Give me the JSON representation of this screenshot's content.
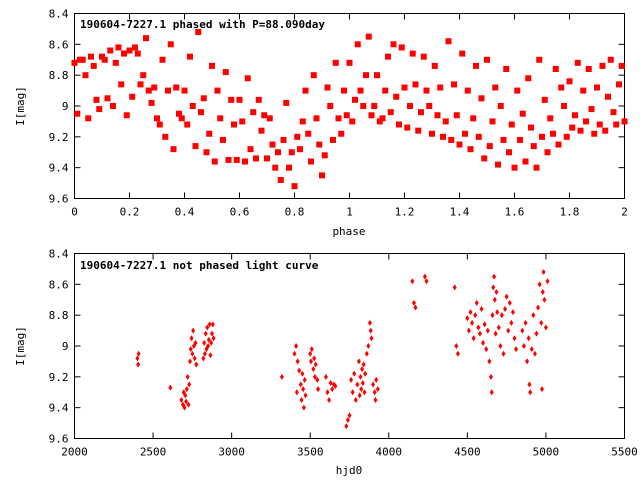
{
  "chart_data": [
    {
      "type": "scatter",
      "title": "190604-7227.1 phased with P=88.090day",
      "xlabel": "phase",
      "ylabel": "I[mag]",
      "xlim": [
        0,
        2
      ],
      "ylim": [
        8.4,
        9.6
      ],
      "y_inverted": true,
      "grid": false,
      "marker": "filled square",
      "color": "#ff0000",
      "x_ticks": [
        "0",
        "0.2",
        "0.4",
        "0.6",
        "0.8",
        "1",
        "1.2",
        "1.4",
        "1.6",
        "1.8",
        "2"
      ],
      "y_ticks": [
        "8.4",
        "8.6",
        "8.8",
        "9",
        "9.2",
        "9.4",
        "9.6"
      ],
      "points": [
        [
          0.0,
          8.72
        ],
        [
          0.01,
          9.05
        ],
        [
          0.02,
          8.7
        ],
        [
          0.03,
          8.7
        ],
        [
          0.04,
          8.8
        ],
        [
          0.05,
          9.08
        ],
        [
          0.06,
          8.68
        ],
        [
          0.07,
          8.74
        ],
        [
          0.08,
          8.96
        ],
        [
          0.09,
          9.02
        ],
        [
          0.1,
          8.68
        ],
        [
          0.11,
          8.7
        ],
        [
          0.12,
          8.95
        ],
        [
          0.13,
          8.64
        ],
        [
          0.14,
          9.0
        ],
        [
          0.15,
          8.72
        ],
        [
          0.16,
          8.62
        ],
        [
          0.17,
          8.86
        ],
        [
          0.18,
          8.66
        ],
        [
          0.19,
          9.06
        ],
        [
          0.2,
          8.64
        ],
        [
          0.21,
          8.94
        ],
        [
          0.22,
          8.62
        ],
        [
          0.23,
          8.66
        ],
        [
          0.24,
          8.86
        ],
        [
          0.25,
          8.8
        ],
        [
          0.26,
          8.56
        ],
        [
          0.27,
          8.9
        ],
        [
          0.28,
          8.98
        ],
        [
          0.29,
          8.88
        ],
        [
          0.3,
          9.08
        ],
        [
          0.31,
          9.12
        ],
        [
          0.32,
          8.7
        ],
        [
          0.33,
          9.2
        ],
        [
          0.34,
          8.9
        ],
        [
          0.35,
          8.6
        ],
        [
          0.36,
          9.28
        ],
        [
          0.37,
          8.88
        ],
        [
          0.38,
          9.05
        ],
        [
          0.39,
          9.08
        ],
        [
          0.4,
          8.9
        ],
        [
          0.41,
          9.12
        ],
        [
          0.42,
          8.68
        ],
        [
          0.43,
          9.0
        ],
        [
          0.44,
          9.26
        ],
        [
          0.45,
          8.52
        ],
        [
          0.46,
          9.04
        ],
        [
          0.47,
          8.95
        ],
        [
          0.48,
          9.3
        ],
        [
          0.49,
          9.18
        ],
        [
          0.5,
          8.74
        ],
        [
          0.51,
          9.36
        ],
        [
          0.52,
          8.9
        ],
        [
          0.53,
          9.08
        ],
        [
          0.54,
          9.22
        ],
        [
          0.55,
          8.78
        ],
        [
          0.56,
          9.35
        ],
        [
          0.57,
          8.96
        ],
        [
          0.58,
          9.12
        ],
        [
          0.59,
          9.35
        ],
        [
          0.6,
          8.96
        ],
        [
          0.61,
          9.1
        ],
        [
          0.62,
          9.36
        ],
        [
          0.63,
          8.82
        ],
        [
          0.64,
          9.28
        ],
        [
          0.65,
          9.04
        ],
        [
          0.66,
          9.34
        ],
        [
          0.67,
          8.96
        ],
        [
          0.68,
          9.16
        ],
        [
          0.69,
          9.06
        ],
        [
          0.7,
          9.34
        ],
        [
          0.71,
          9.08
        ],
        [
          0.72,
          9.25
        ],
        [
          0.73,
          9.4
        ],
        [
          0.74,
          9.3
        ],
        [
          0.75,
          9.48
        ],
        [
          0.76,
          9.22
        ],
        [
          0.77,
          8.98
        ],
        [
          0.78,
          9.4
        ],
        [
          0.79,
          9.3
        ],
        [
          0.8,
          9.52
        ],
        [
          0.81,
          9.2
        ],
        [
          0.82,
          9.28
        ],
        [
          0.83,
          9.1
        ],
        [
          0.84,
          8.9
        ],
        [
          0.85,
          9.18
        ],
        [
          0.86,
          9.36
        ],
        [
          0.87,
          8.8
        ],
        [
          0.88,
          9.08
        ],
        [
          0.89,
          9.25
        ],
        [
          0.9,
          9.45
        ],
        [
          0.91,
          9.32
        ],
        [
          0.92,
          8.88
        ],
        [
          0.93,
          9.0
        ],
        [
          0.94,
          9.22
        ],
        [
          0.95,
          8.72
        ],
        [
          0.96,
          9.08
        ],
        [
          0.97,
          9.18
        ],
        [
          0.98,
          8.9
        ],
        [
          0.99,
          9.06
        ],
        [
          1.0,
          8.72
        ],
        [
          1.01,
          9.1
        ],
        [
          1.02,
          8.96
        ],
        [
          1.03,
          8.6
        ],
        [
          1.04,
          8.9
        ],
        [
          1.05,
          9.0
        ],
        [
          1.06,
          8.8
        ],
        [
          1.07,
          8.55
        ],
        [
          1.08,
          9.06
        ],
        [
          1.09,
          9.0
        ],
        [
          1.1,
          8.8
        ],
        [
          1.11,
          9.1
        ],
        [
          1.12,
          9.08
        ],
        [
          1.13,
          8.9
        ],
        [
          1.14,
          8.68
        ],
        [
          1.15,
          9.04
        ],
        [
          1.16,
          8.6
        ],
        [
          1.17,
          8.94
        ],
        [
          1.18,
          9.12
        ],
        [
          1.19,
          8.62
        ],
        [
          1.2,
          8.88
        ],
        [
          1.21,
          9.14
        ],
        [
          1.22,
          9.0
        ],
        [
          1.23,
          8.66
        ],
        [
          1.24,
          8.86
        ],
        [
          1.25,
          9.16
        ],
        [
          1.26,
          9.04
        ],
        [
          1.27,
          8.68
        ],
        [
          1.28,
          8.9
        ],
        [
          1.29,
          9.0
        ],
        [
          1.3,
          9.18
        ],
        [
          1.31,
          8.74
        ],
        [
          1.32,
          9.06
        ],
        [
          1.33,
          8.88
        ],
        [
          1.34,
          9.2
        ],
        [
          1.35,
          9.1
        ],
        [
          1.36,
          8.58
        ],
        [
          1.37,
          9.22
        ],
        [
          1.38,
          8.86
        ],
        [
          1.39,
          9.06
        ],
        [
          1.4,
          9.25
        ],
        [
          1.41,
          8.66
        ],
        [
          1.42,
          9.18
        ],
        [
          1.43,
          8.9
        ],
        [
          1.44,
          9.28
        ],
        [
          1.45,
          9.08
        ],
        [
          1.46,
          8.74
        ],
        [
          1.47,
          9.2
        ],
        [
          1.48,
          8.95
        ],
        [
          1.49,
          9.34
        ],
        [
          1.5,
          8.7
        ],
        [
          1.51,
          9.26
        ],
        [
          1.52,
          9.1
        ],
        [
          1.53,
          8.88
        ],
        [
          1.54,
          9.38
        ],
        [
          1.55,
          9.0
        ],
        [
          1.56,
          9.22
        ],
        [
          1.57,
          8.76
        ],
        [
          1.58,
          9.3
        ],
        [
          1.59,
          9.12
        ],
        [
          1.6,
          9.4
        ],
        [
          1.61,
          8.9
        ],
        [
          1.62,
          9.22
        ],
        [
          1.63,
          9.05
        ],
        [
          1.64,
          9.36
        ],
        [
          1.65,
          8.82
        ],
        [
          1.66,
          9.14
        ],
        [
          1.67,
          9.26
        ],
        [
          1.68,
          9.4
        ],
        [
          1.69,
          8.7
        ],
        [
          1.7,
          9.2
        ],
        [
          1.71,
          8.96
        ],
        [
          1.72,
          9.3
        ],
        [
          1.73,
          9.08
        ],
        [
          1.74,
          9.18
        ],
        [
          1.75,
          8.76
        ],
        [
          1.76,
          9.25
        ],
        [
          1.77,
          8.88
        ],
        [
          1.78,
          9.0
        ],
        [
          1.79,
          9.2
        ],
        [
          1.8,
          8.84
        ],
        [
          1.81,
          9.14
        ],
        [
          1.82,
          9.06
        ],
        [
          1.83,
          8.72
        ],
        [
          1.84,
          9.16
        ],
        [
          1.85,
          8.9
        ],
        [
          1.86,
          9.1
        ],
        [
          1.87,
          8.76
        ],
        [
          1.88,
          9.02
        ],
        [
          1.89,
          9.18
        ],
        [
          1.9,
          8.88
        ],
        [
          1.91,
          9.12
        ],
        [
          1.92,
          8.74
        ],
        [
          1.93,
          9.16
        ],
        [
          1.94,
          8.94
        ],
        [
          1.95,
          8.7
        ],
        [
          1.96,
          9.04
        ],
        [
          1.97,
          9.12
        ],
        [
          1.98,
          8.86
        ],
        [
          1.99,
          8.74
        ],
        [
          2.0,
          9.1
        ]
      ]
    },
    {
      "type": "scatter",
      "title": "190604-7227.1 not phased light curve",
      "xlabel": "hjd0",
      "ylabel": "I[mag]",
      "xlim": [
        2000,
        5500
      ],
      "ylim": [
        8.4,
        9.6
      ],
      "y_inverted": true,
      "grid": false,
      "marker": "small diamond",
      "color": "#ff0000",
      "x_ticks": [
        "2000",
        "2500",
        "3000",
        "3500",
        "4000",
        "4500",
        "5000",
        "5500"
      ],
      "y_ticks": [
        "8.4",
        "8.6",
        "8.8",
        "9",
        "9.2",
        "9.4",
        "9.6"
      ],
      "points": [
        [
          2400,
          9.08
        ],
        [
          2405,
          9.12
        ],
        [
          2408,
          9.05
        ],
        [
          2610,
          9.27
        ],
        [
          2680,
          9.35
        ],
        [
          2690,
          9.38
        ],
        [
          2695,
          9.3
        ],
        [
          2700,
          9.4
        ],
        [
          2705,
          9.32
        ],
        [
          2710,
          9.36
        ],
        [
          2715,
          9.28
        ],
        [
          2720,
          9.2
        ],
        [
          2725,
          9.38
        ],
        [
          2730,
          9.25
        ],
        [
          2735,
          9.1
        ],
        [
          2740,
          9.02
        ],
        [
          2745,
          8.95
        ],
        [
          2750,
          9.05
        ],
        [
          2755,
          8.9
        ],
        [
          2760,
          9.0
        ],
        [
          2765,
          9.08
        ],
        [
          2770,
          8.98
        ],
        [
          2775,
          9.12
        ],
        [
          2820,
          9.08
        ],
        [
          2825,
          8.98
        ],
        [
          2830,
          9.05
        ],
        [
          2835,
          8.92
        ],
        [
          2840,
          9.02
        ],
        [
          2845,
          8.88
        ],
        [
          2850,
          9.0
        ],
        [
          2855,
          8.96
        ],
        [
          2860,
          8.86
        ],
        [
          2865,
          9.06
        ],
        [
          2870,
          8.98
        ],
        [
          2875,
          8.92
        ],
        [
          2880,
          8.86
        ],
        [
          2885,
          8.95
        ],
        [
          3320,
          9.2
        ],
        [
          3400,
          9.05
        ],
        [
          3410,
          9.0
        ],
        [
          3415,
          9.3
        ],
        [
          3420,
          9.1
        ],
        [
          3430,
          9.16
        ],
        [
          3440,
          9.25
        ],
        [
          3445,
          9.35
        ],
        [
          3450,
          9.18
        ],
        [
          3455,
          9.28
        ],
        [
          3460,
          9.4
        ],
        [
          3465,
          9.22
        ],
        [
          3470,
          9.32
        ],
        [
          3500,
          9.05
        ],
        [
          3505,
          9.1
        ],
        [
          3510,
          9.02
        ],
        [
          3520,
          9.15
        ],
        [
          3525,
          9.08
        ],
        [
          3530,
          9.2
        ],
        [
          3535,
          9.12
        ],
        [
          3545,
          9.22
        ],
        [
          3550,
          9.28
        ],
        [
          3600,
          9.2
        ],
        [
          3610,
          9.3
        ],
        [
          3620,
          9.35
        ],
        [
          3630,
          9.24
        ],
        [
          3640,
          9.28
        ],
        [
          3650,
          9.25
        ],
        [
          3660,
          9.26
        ],
        [
          3730,
          9.52
        ],
        [
          3740,
          9.48
        ],
        [
          3750,
          9.45
        ],
        [
          3760,
          9.22
        ],
        [
          3770,
          9.3
        ],
        [
          3780,
          9.18
        ],
        [
          3790,
          9.35
        ],
        [
          3800,
          9.25
        ],
        [
          3810,
          9.1
        ],
        [
          3815,
          9.32
        ],
        [
          3820,
          9.2
        ],
        [
          3825,
          9.28
        ],
        [
          3830,
          9.15
        ],
        [
          3835,
          9.24
        ],
        [
          3840,
          9.12
        ],
        [
          3845,
          9.3
        ],
        [
          3850,
          9.18
        ],
        [
          3860,
          9.05
        ],
        [
          3870,
          9.0
        ],
        [
          3880,
          8.85
        ],
        [
          3885,
          8.9
        ],
        [
          3890,
          8.95
        ],
        [
          3900,
          9.25
        ],
        [
          3910,
          9.3
        ],
        [
          3915,
          9.35
        ],
        [
          3920,
          9.22
        ],
        [
          3930,
          9.28
        ],
        [
          4150,
          8.58
        ],
        [
          4160,
          8.72
        ],
        [
          4170,
          8.75
        ],
        [
          4230,
          8.55
        ],
        [
          4240,
          8.58
        ],
        [
          4420,
          8.62
        ],
        [
          4430,
          9.0
        ],
        [
          4440,
          9.05
        ],
        [
          4500,
          8.82
        ],
        [
          4510,
          8.9
        ],
        [
          4520,
          8.78
        ],
        [
          4530,
          8.85
        ],
        [
          4540,
          8.95
        ],
        [
          4550,
          8.8
        ],
        [
          4560,
          8.72
        ],
        [
          4570,
          8.88
        ],
        [
          4580,
          8.92
        ],
        [
          4590,
          8.76
        ],
        [
          4600,
          8.98
        ],
        [
          4610,
          8.86
        ],
        [
          4620,
          9.02
        ],
        [
          4630,
          8.9
        ],
        [
          4640,
          9.1
        ],
        [
          4650,
          9.2
        ],
        [
          4655,
          9.3
        ],
        [
          4660,
          8.8
        ],
        [
          4665,
          8.62
        ],
        [
          4670,
          8.55
        ],
        [
          4675,
          8.7
        ],
        [
          4680,
          8.92
        ],
        [
          4685,
          8.65
        ],
        [
          4690,
          8.78
        ],
        [
          4700,
          8.88
        ],
        [
          4710,
          9.0
        ],
        [
          4720,
          8.8
        ],
        [
          4730,
          9.05
        ],
        [
          4740,
          8.76
        ],
        [
          4750,
          8.68
        ],
        [
          4760,
          8.9
        ],
        [
          4770,
          8.72
        ],
        [
          4780,
          8.85
        ],
        [
          4790,
          8.78
        ],
        [
          4800,
          8.95
        ],
        [
          4810,
          9.02
        ],
        [
          4850,
          8.9
        ],
        [
          4860,
          9.0
        ],
        [
          4870,
          8.85
        ],
        [
          4880,
          9.1
        ],
        [
          4890,
          8.95
        ],
        [
          4895,
          9.25
        ],
        [
          4900,
          9.3
        ],
        [
          4910,
          9.02
        ],
        [
          4920,
          8.8
        ],
        [
          4930,
          9.05
        ],
        [
          4940,
          8.92
        ],
        [
          4950,
          8.75
        ],
        [
          4960,
          8.6
        ],
        [
          4970,
          8.85
        ],
        [
          4975,
          9.28
        ],
        [
          4980,
          8.65
        ],
        [
          4985,
          8.52
        ],
        [
          4990,
          8.7
        ],
        [
          5000,
          8.88
        ],
        [
          5010,
          8.58
        ]
      ]
    }
  ]
}
